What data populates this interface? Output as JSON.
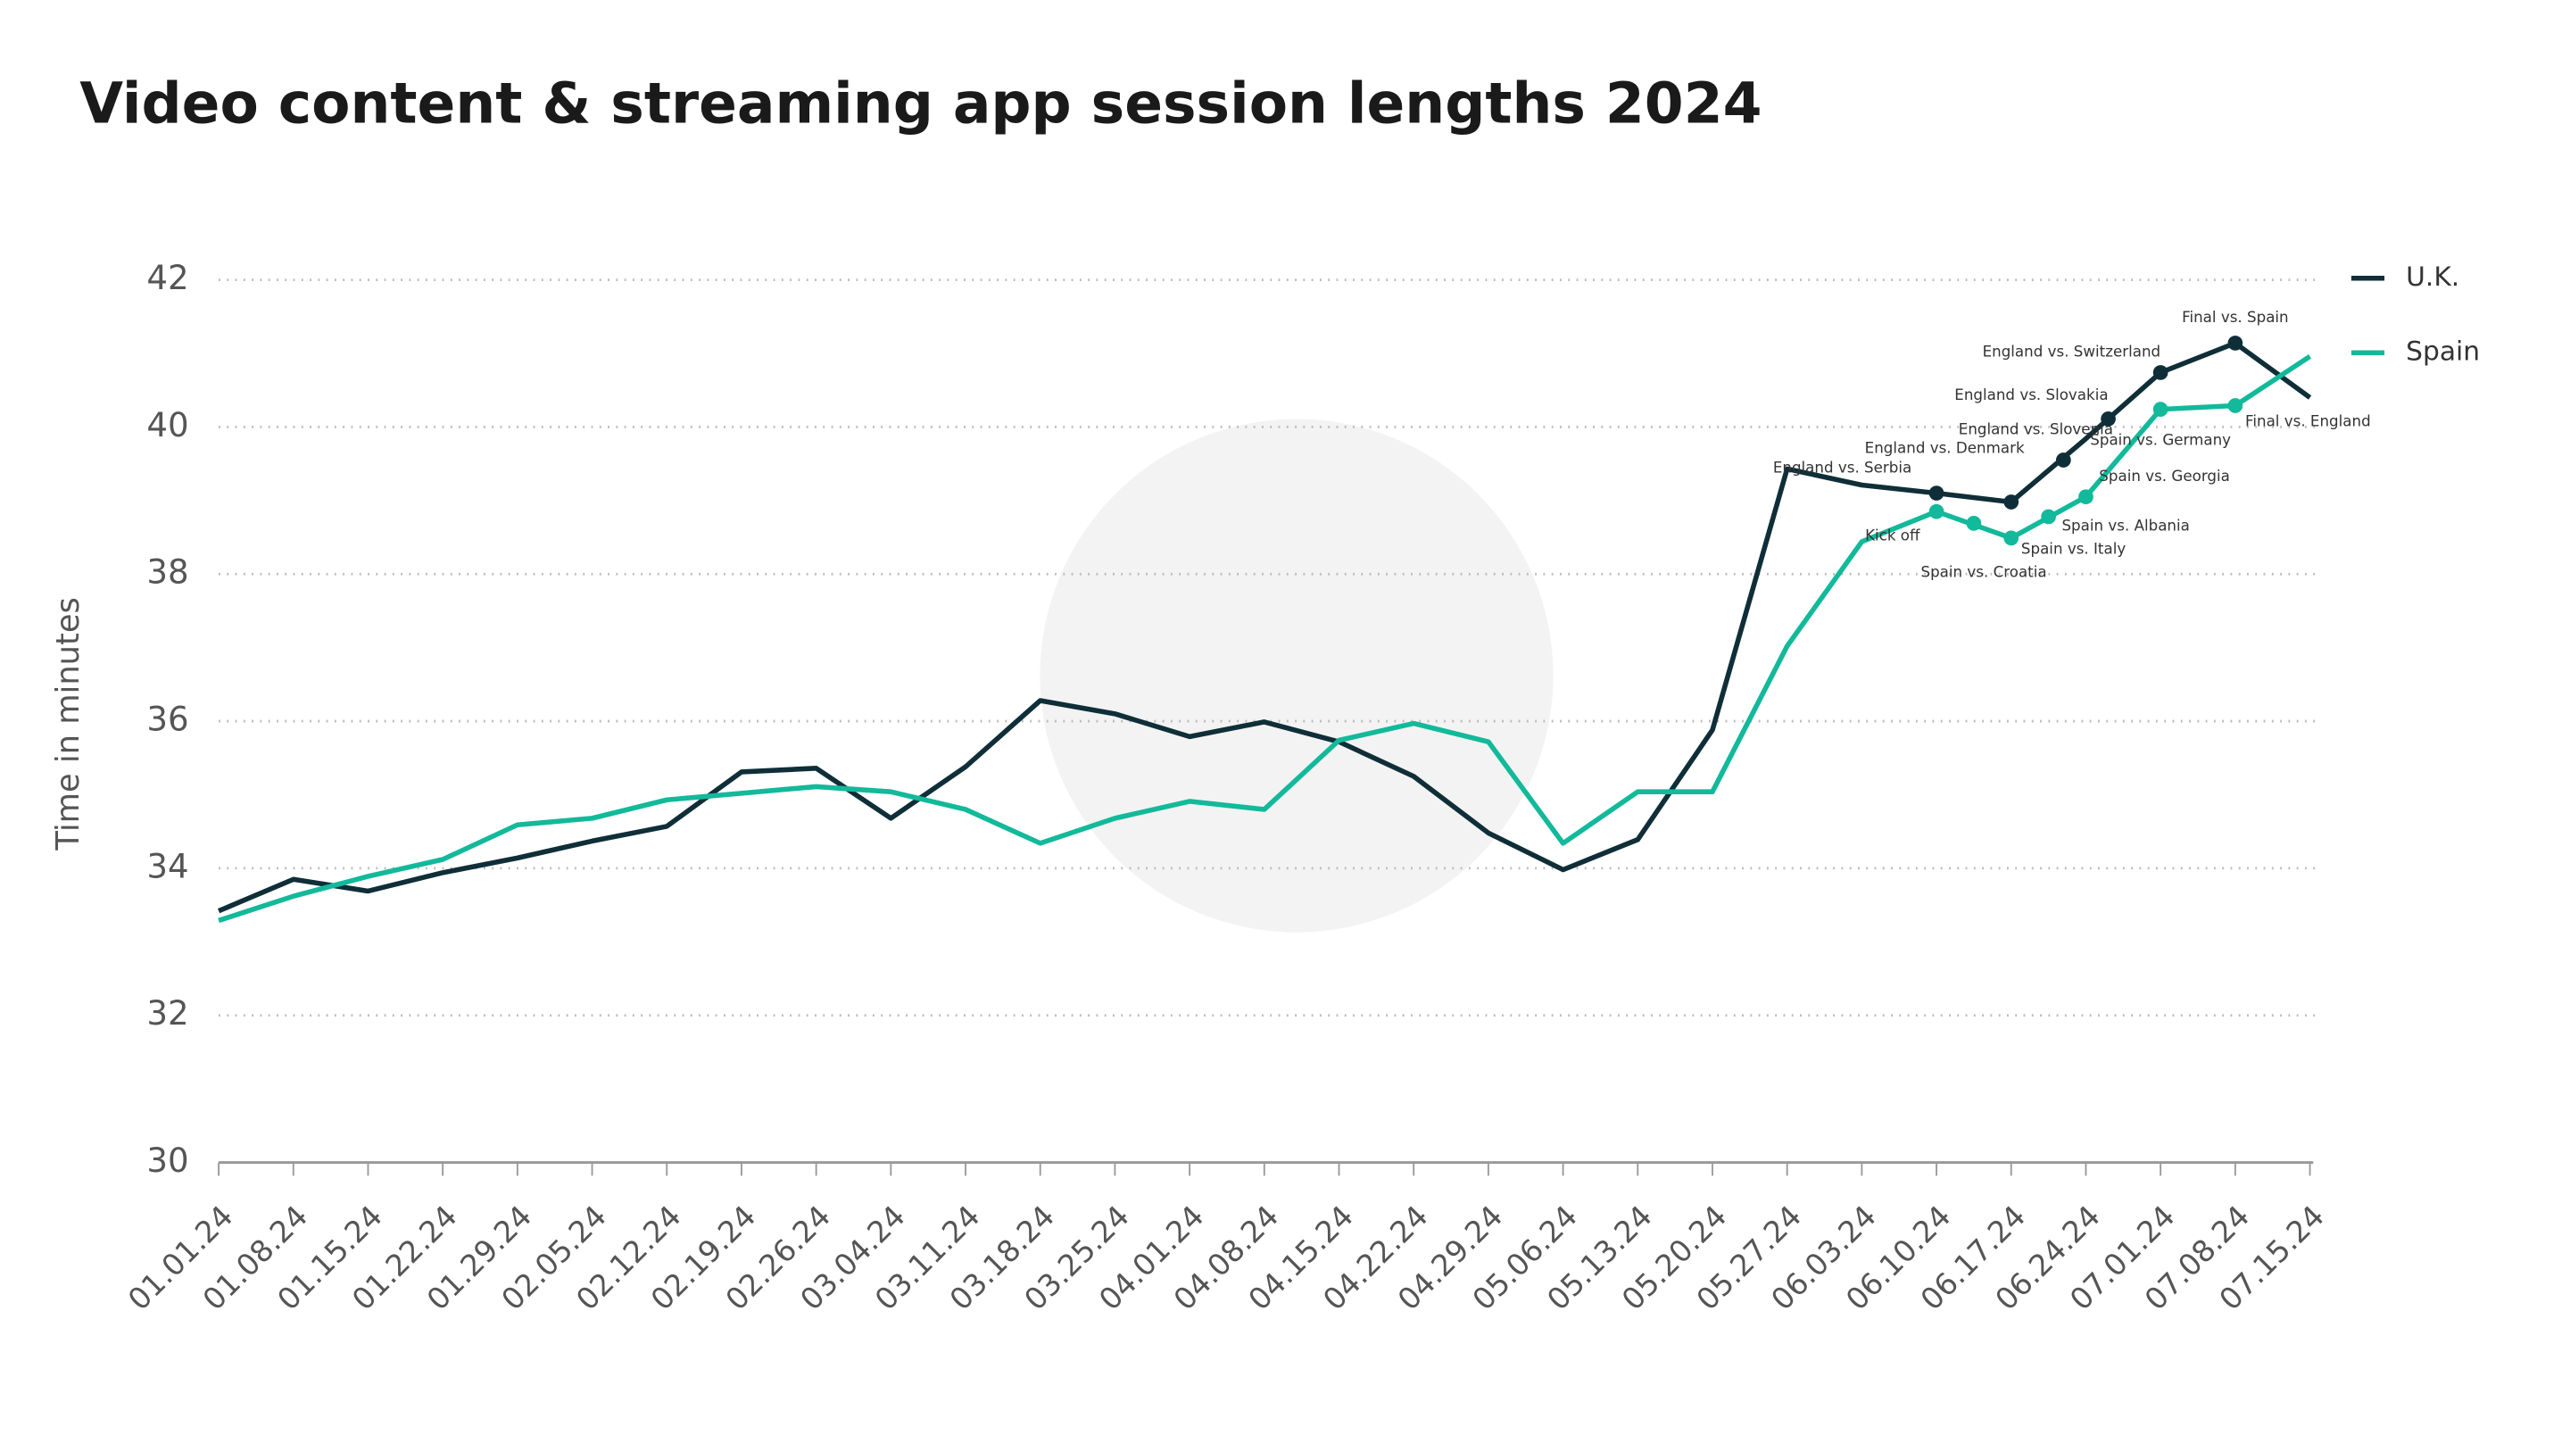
{
  "chart_data": {
    "type": "line",
    "title": "Video content & streaming app session lengths 2024",
    "y_label": "Time in minutes",
    "categories": [
      "01.01.24",
      "01.08.24",
      "01.15.24",
      "01.22.24",
      "01.29.24",
      "02.05.24",
      "02.12.24",
      "02.19.24",
      "02.26.24",
      "03.04.24",
      "03.11.24",
      "03.18.24",
      "03.25.24",
      "04.01.24",
      "04.08.24",
      "04.15.24",
      "04.22.24",
      "04.29.24",
      "05.06.24",
      "05.13.24",
      "05.20.24",
      "05.27.24",
      "06.03.24",
      "06.10.24",
      "06.17.24",
      "06.24.24",
      "07.01.24",
      "07.08.24",
      "07.15.24"
    ],
    "series": [
      {
        "name": "U.K.",
        "color": "#0f2e38",
        "values": [
          33.42,
          33.85,
          33.69,
          33.94,
          34.14,
          34.37,
          34.57,
          35.31,
          35.36,
          34.68,
          35.38,
          36.28,
          36.1,
          35.79,
          35.99,
          35.72,
          35.25,
          34.48,
          33.98,
          34.39,
          35.88,
          39.43,
          39.21,
          39.1,
          38.98,
          39.84,
          40.74,
          41.14,
          40.4
        ]
      },
      {
        "name": "Spain",
        "color": "#12b99a",
        "values": [
          33.29,
          33.62,
          33.89,
          34.12,
          34.59,
          34.68,
          34.93,
          35.02,
          35.11,
          35.04,
          34.8,
          34.34,
          34.68,
          34.91,
          34.8,
          35.74,
          35.97,
          35.72,
          34.34,
          35.04,
          35.04,
          37.02,
          38.44,
          38.85,
          38.49,
          39.05,
          40.24,
          40.29,
          40.96
        ]
      }
    ],
    "annotations": [
      {
        "label": "England vs. Serbia",
        "series": 0,
        "x": 23,
        "y": 39.1
      },
      {
        "label": "England vs. Denmark",
        "series": 0,
        "x": 24,
        "y": 38.98
      },
      {
        "label": "England vs. Slovenia",
        "series": 0,
        "x": 24.7,
        "y": 39.55
      },
      {
        "label": "England vs. Slovakia",
        "series": 0,
        "x": 25.3,
        "y": 40.11
      },
      {
        "label": "England vs. Switzerland",
        "series": 0,
        "x": 26,
        "y": 40.74
      },
      {
        "label": "Final vs. Spain",
        "series": 0,
        "x": 27,
        "y": 41.14
      },
      {
        "label": "Kick off",
        "series": 1,
        "x": 23,
        "y": 38.85
      },
      {
        "label": "Spain vs. Croatia",
        "series": 1,
        "x": 23.5,
        "y": 38.69
      },
      {
        "label": "Spain vs. Italy",
        "series": 1,
        "x": 24,
        "y": 38.49
      },
      {
        "label": "Spain vs. Albania",
        "series": 1,
        "x": 24.5,
        "y": 38.78
      },
      {
        "label": "Spain vs. Georgia",
        "series": 1,
        "x": 25,
        "y": 39.05
      },
      {
        "label": "Spain vs. Germany",
        "series": 1,
        "x": 26,
        "y": 40.24
      },
      {
        "label": "Final vs. England",
        "series": 1,
        "x": 27,
        "y": 40.29
      }
    ],
    "ylim": [
      30,
      42
    ],
    "yticks": [
      30,
      32,
      34,
      36,
      38,
      40,
      42
    ],
    "grid": true,
    "legend": "top-right"
  }
}
